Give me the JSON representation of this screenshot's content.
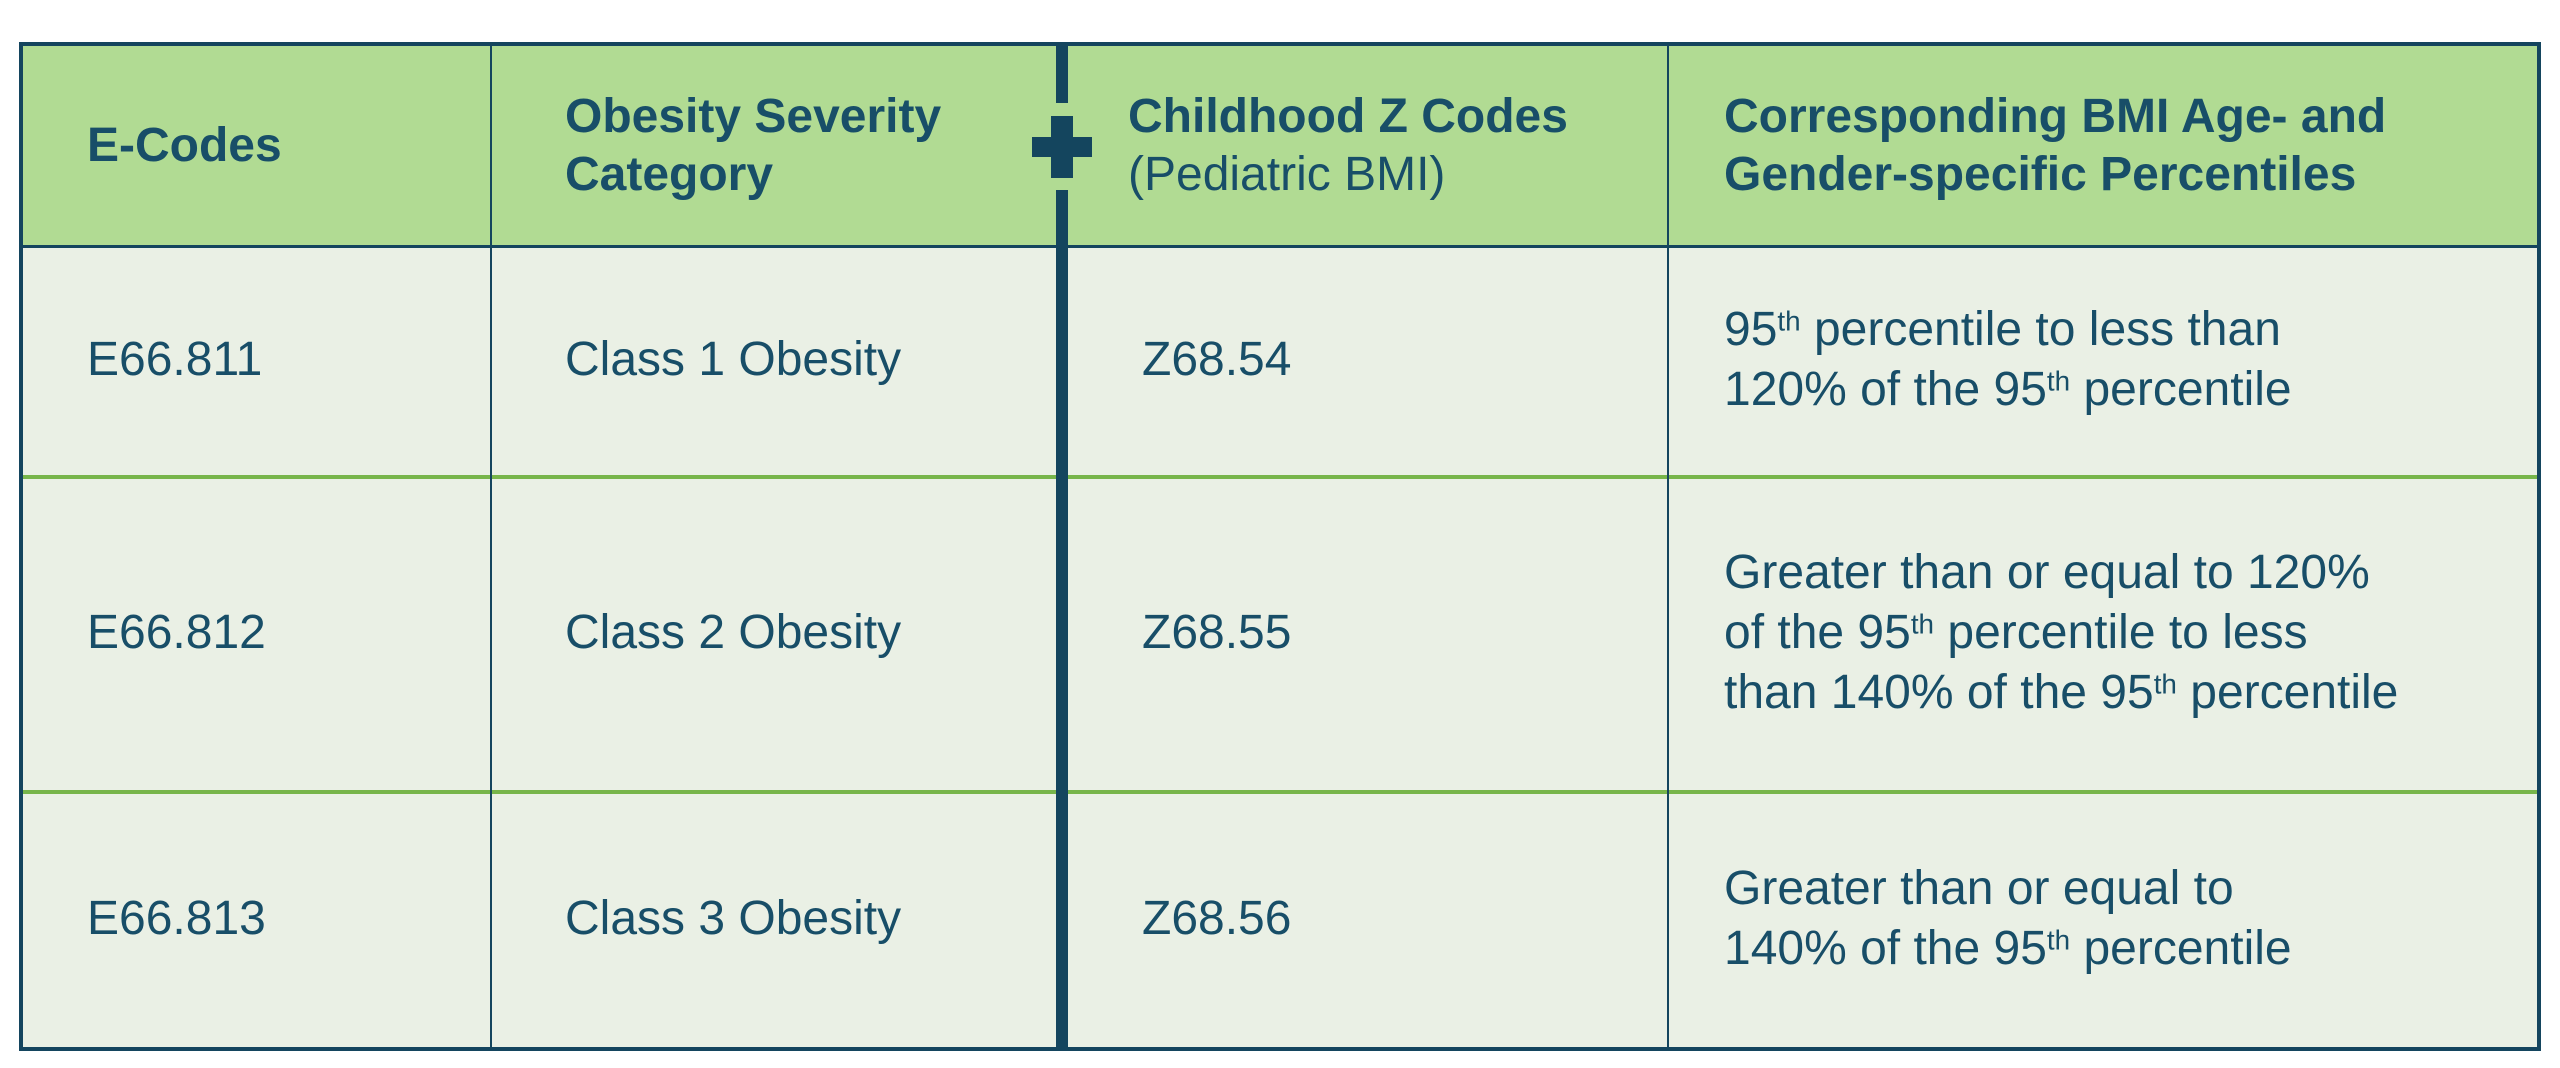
{
  "colors": {
    "navy": "#14455e",
    "text_navy": "#184e68",
    "header_green": "#b1db93",
    "body_bg": "#eaf0e5",
    "separator_green": "#77b54a",
    "page_bg": "#ffffff"
  },
  "table": {
    "header": {
      "e_codes": "E-Codes",
      "severity": "Obesity Severity\nCategory",
      "z_codes_title": "Childhood Z Codes",
      "z_codes_subtitle": "(Pediatric BMI)",
      "percentiles": "Corresponding BMI Age- and\nGender-specific Percentiles"
    },
    "rows": [
      {
        "e_code": "E66.811",
        "category": "Class 1 Obesity",
        "z_code": "Z68.54",
        "percentile_lines": [
          [
            {
              "text": "95"
            },
            {
              "text": "th",
              "sup": true
            },
            {
              "text": " percentile to less than"
            }
          ],
          [
            {
              "text": "120% of the 95"
            },
            {
              "text": "th",
              "sup": true
            },
            {
              "text": " percentile"
            }
          ]
        ]
      },
      {
        "e_code": "E66.812",
        "category": "Class 2 Obesity",
        "z_code": "Z68.55",
        "percentile_lines": [
          [
            {
              "text": "Greater than or equal to 120%"
            }
          ],
          [
            {
              "text": "of the 95"
            },
            {
              "text": "th",
              "sup": true
            },
            {
              "text": " percentile to less"
            }
          ],
          [
            {
              "text": "than 140% of the 95"
            },
            {
              "text": "th",
              "sup": true
            },
            {
              "text": " percentile"
            }
          ]
        ]
      },
      {
        "e_code": "E66.813",
        "category": "Class 3 Obesity",
        "z_code": "Z68.56",
        "percentile_lines": [
          [
            {
              "text": "Greater than or equal to"
            }
          ],
          [
            {
              "text": "140% of the 95"
            },
            {
              "text": "th",
              "sup": true
            },
            {
              "text": " percentile"
            }
          ]
        ]
      }
    ]
  }
}
